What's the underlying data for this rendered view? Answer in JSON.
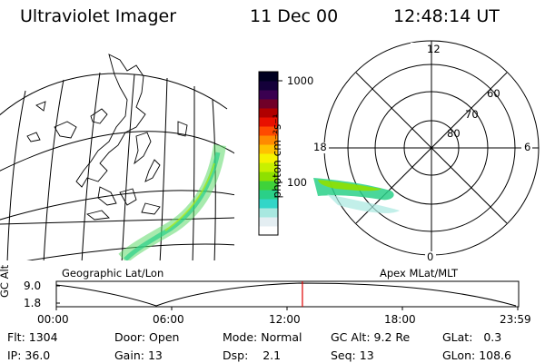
{
  "header": {
    "instrument": "Ultraviolet Imager",
    "date": "11 Dec 00",
    "time": "12:48:14 UT"
  },
  "colorbar": {
    "ticks": [
      "1000",
      "100"
    ],
    "unit_label": "photon cm⁻²s⁻¹",
    "colors": [
      "#ffffff",
      "#e4eef2",
      "#a8e8e0",
      "#32d6c8",
      "#2ad088",
      "#3fd23a",
      "#8fe000",
      "#c8f000",
      "#f6f200",
      "#ffc200",
      "#ff8a00",
      "#ff4a00",
      "#e81000",
      "#b00000",
      "#700028",
      "#3a0050",
      "#14003a",
      "#000020"
    ]
  },
  "polar_plot": {
    "mlt_labels": [
      "12",
      "18",
      "6",
      "0"
    ],
    "mlat_labels": [
      "60",
      "70",
      "80"
    ]
  },
  "map_label": "Geographic Lat/Lon",
  "polar_label": "Apex MLat/MLT",
  "altitude_strip": {
    "axis_title": "GC Alt",
    "y_ticks": [
      "9.0",
      "1.8"
    ],
    "x_ticks": [
      "00:00",
      "06:00",
      "12:00",
      "18:00",
      "23:59"
    ],
    "current_time_hours": 12.8,
    "marker_color": "#e00000"
  },
  "status": {
    "flt_label": "Flt:",
    "flt_value": "1304",
    "door_label": "Door:",
    "door_value": "Open",
    "mode_label": "Mode:",
    "mode_value": "Normal",
    "gcalt_label": "GC Alt:",
    "gcalt_value": "9.2 Re",
    "glat_label": "GLat:",
    "glat_value": "0.3",
    "ip_label": "IP:",
    "ip_value": "36.0",
    "gain_label": "Gain:",
    "gain_value": "13",
    "dsp_label": "Dsp:",
    "dsp_value": "2.1",
    "seq_label": "Seq:",
    "seq_value": "13",
    "glon_label": "GLon:",
    "glon_value": "108.6"
  }
}
